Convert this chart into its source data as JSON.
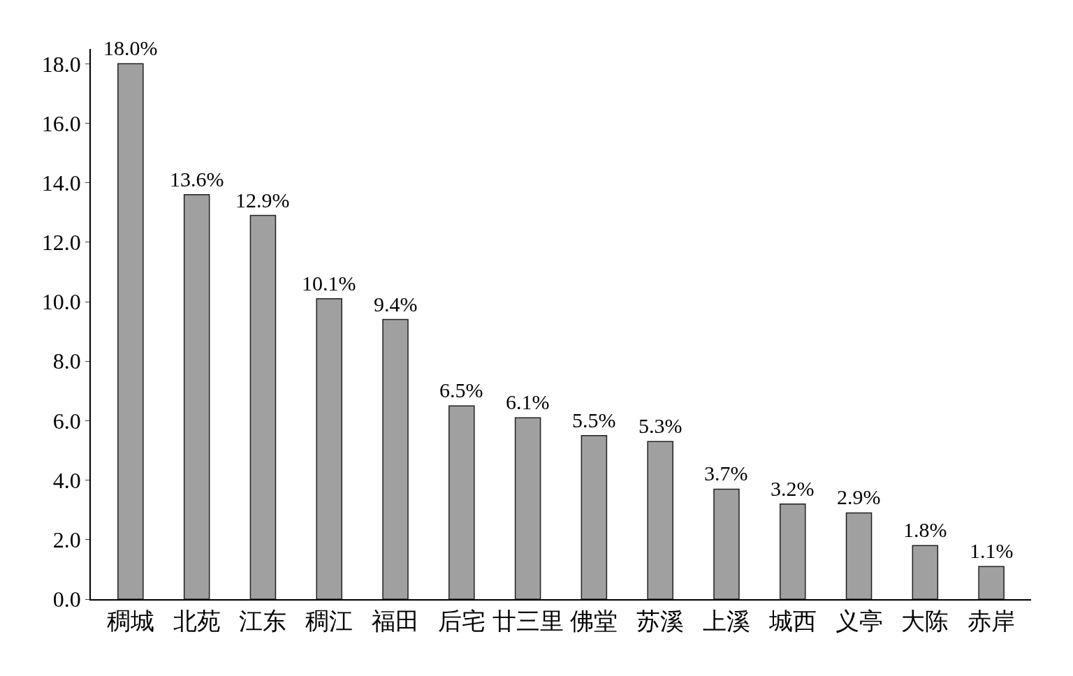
{
  "chart_data": {
    "type": "bar",
    "categories": [
      "稠城",
      "北苑",
      "江东",
      "稠江",
      "福田",
      "后宅",
      "廿三里",
      "佛堂",
      "苏溪",
      "上溪",
      "城西",
      "义亭",
      "大陈",
      "赤岸"
    ],
    "values": [
      18.0,
      13.6,
      12.9,
      10.1,
      9.4,
      6.5,
      6.1,
      5.5,
      5.3,
      3.7,
      3.2,
      2.9,
      1.8,
      1.1
    ],
    "value_labels": [
      "18.0%",
      "13.6%",
      "12.9%",
      "10.1%",
      "9.4%",
      "6.5%",
      "6.1%",
      "5.5%",
      "5.3%",
      "3.7%",
      "3.2%",
      "2.9%",
      "1.8%",
      "1.1%"
    ],
    "color": "#a0a0a0",
    "ylim": [
      0,
      18.5
    ],
    "yticks": [
      {
        "value": 0,
        "label": "0.0"
      },
      {
        "value": 2,
        "label": "2.0"
      },
      {
        "value": 4,
        "label": "4.0"
      },
      {
        "value": 6,
        "label": "6.0"
      },
      {
        "value": 8,
        "label": "8.0"
      },
      {
        "value": 10,
        "label": "10.0"
      },
      {
        "value": 12,
        "label": "12.0"
      },
      {
        "value": 14,
        "label": "14.0"
      },
      {
        "value": 16,
        "label": "16.0"
      },
      {
        "value": 18,
        "label": "18.0"
      }
    ],
    "grid": false
  }
}
